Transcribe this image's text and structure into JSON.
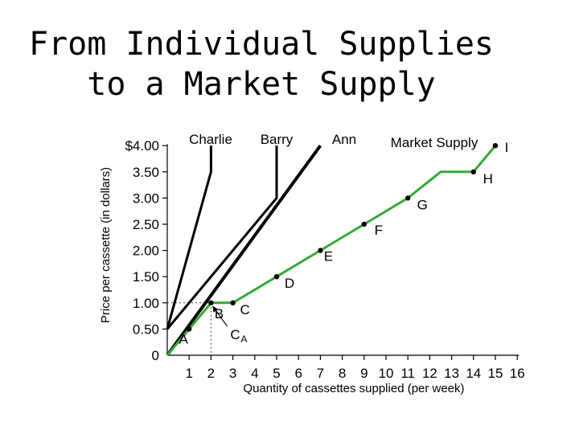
{
  "title_lines": [
    "From Individual Supplies",
    "to a Market Supply"
  ],
  "chart_data": {
    "type": "line",
    "xlabel": "Quantity of cassettes supplied (per week)",
    "ylabel": "Price per cassette (in dollars)",
    "xlim": [
      0,
      16
    ],
    "ylim": [
      0,
      4
    ],
    "x_ticks": [
      "1",
      "2",
      "3",
      "4",
      "5",
      "6",
      "7",
      "8",
      "9",
      "10",
      "11",
      "12",
      "13",
      "14",
      "15",
      "16"
    ],
    "y_ticks": [
      {
        "value": 0,
        "label": "0"
      },
      {
        "value": 0.5,
        "label": "0.50"
      },
      {
        "value": 1.0,
        "label": "1.00"
      },
      {
        "value": 1.5,
        "label": "1.50"
      },
      {
        "value": 2.0,
        "label": "2.00"
      },
      {
        "value": 2.5,
        "label": "2.50"
      },
      {
        "value": 3.0,
        "label": "3.00"
      },
      {
        "value": 3.5,
        "label": "3.50"
      },
      {
        "value": 4.0,
        "label": "$4.00"
      }
    ],
    "series": [
      {
        "name": "Charlie",
        "points": [
          [
            0,
            0.5
          ],
          [
            2.0,
            3.5
          ],
          [
            2.0,
            4.0
          ]
        ],
        "stroke": "#000000",
        "width": 3
      },
      {
        "name": "Barry",
        "points": [
          [
            0,
            0.5
          ],
          [
            5.0,
            3.0
          ],
          [
            5.0,
            4.0
          ]
        ],
        "stroke": "#000000",
        "width": 3
      },
      {
        "name": "Ann",
        "points": [
          [
            0,
            0
          ],
          [
            7.0,
            4.0
          ]
        ],
        "stroke": "#000000",
        "width": 4
      },
      {
        "name": "Market Supply",
        "points": [
          [
            0,
            0
          ],
          [
            1,
            0.5
          ],
          [
            2,
            1.0
          ],
          [
            3,
            1.0
          ],
          [
            5,
            1.5
          ],
          [
            7,
            2.0
          ],
          [
            9,
            2.5
          ],
          [
            11,
            3.0
          ],
          [
            12.5,
            3.5
          ],
          [
            14,
            3.5
          ],
          [
            15,
            4.0
          ]
        ],
        "stroke": "#33aa33",
        "width": 3
      }
    ],
    "points": [
      {
        "label": "A",
        "x": 1,
        "y": 0.5
      },
      {
        "label": "B",
        "x": 2,
        "y": 1.0
      },
      {
        "label": "C",
        "x": 3,
        "y": 1.0
      },
      {
        "label": "D",
        "x": 5,
        "y": 1.5
      },
      {
        "label": "E",
        "x": 7,
        "y": 2.0
      },
      {
        "label": "F",
        "x": 9,
        "y": 2.5
      },
      {
        "label": "G",
        "x": 11,
        "y": 3.0
      },
      {
        "label": "H",
        "x": 14,
        "y": 3.5
      },
      {
        "label": "I",
        "x": 15,
        "y": 4.0
      }
    ],
    "annotation_label": "C",
    "annotation_sub": "A",
    "grid": false
  }
}
